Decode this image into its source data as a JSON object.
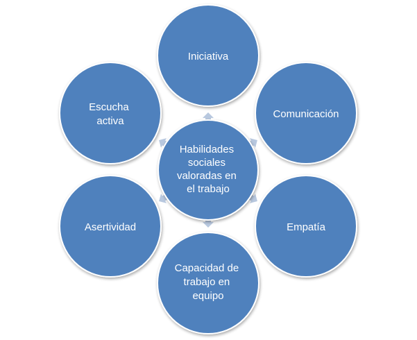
{
  "diagram": {
    "colors": {
      "node_fill": "#4f81bd",
      "node_stroke": "#ffffff",
      "arrow_fill": "#b8c8df",
      "text": "#ffffff",
      "background": "#ffffff"
    },
    "center": {
      "lines": [
        "Habilidades",
        "sociales",
        "valoradas en",
        "el trabajo"
      ]
    },
    "nodes": [
      {
        "id": "iniciativa",
        "lines": [
          "Iniciativa"
        ]
      },
      {
        "id": "comunicacion",
        "lines": [
          "Comunicación"
        ]
      },
      {
        "id": "empatia",
        "lines": [
          "Empatía"
        ]
      },
      {
        "id": "capacidad-trabajo-equipo",
        "lines": [
          "Capacidad de",
          "trabajo en",
          "equipo"
        ]
      },
      {
        "id": "asertividad",
        "lines": [
          "Asertividad"
        ]
      },
      {
        "id": "escucha-activa",
        "lines": [
          "Escucha",
          "activa"
        ]
      }
    ]
  }
}
